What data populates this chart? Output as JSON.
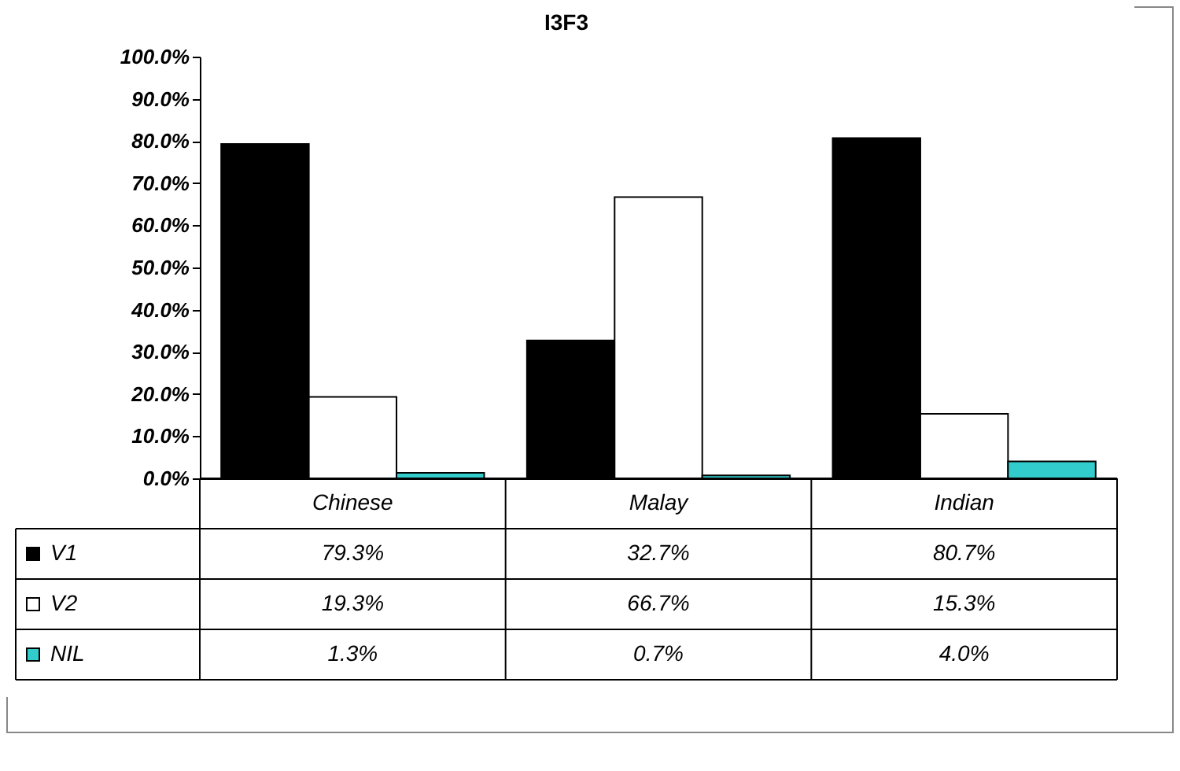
{
  "chart_data": {
    "type": "bar",
    "title": "I3F3",
    "categories": [
      "Chinese",
      "Malay",
      "Indian"
    ],
    "series": [
      {
        "name": "V1",
        "color": "#000000",
        "values": [
          79.3,
          32.7,
          80.7
        ],
        "value_labels": [
          "79.3%",
          "32.7%",
          "80.7%"
        ]
      },
      {
        "name": "V2",
        "color": "#ffffff",
        "values": [
          19.3,
          66.7,
          15.3
        ],
        "value_labels": [
          "19.3%",
          "66.7%",
          "15.3%"
        ]
      },
      {
        "name": "NIL",
        "color": "#33cccc",
        "values": [
          1.3,
          0.7,
          4.0
        ],
        "value_labels": [
          "1.3%",
          "0.7%",
          "4.0%"
        ]
      }
    ],
    "ylim": [
      0,
      100
    ],
    "yticks": [
      {
        "value": 0,
        "label": "0.0%"
      },
      {
        "value": 10,
        "label": "10.0%"
      },
      {
        "value": 20,
        "label": "20.0%"
      },
      {
        "value": 30,
        "label": "30.0%"
      },
      {
        "value": 40,
        "label": "40.0%"
      },
      {
        "value": 50,
        "label": "50.0%"
      },
      {
        "value": 60,
        "label": "60.0%"
      },
      {
        "value": 70,
        "label": "70.0%"
      },
      {
        "value": 80,
        "label": "80.0%"
      },
      {
        "value": 90,
        "label": "90.0%"
      },
      {
        "value": 100,
        "label": "100.0%"
      }
    ],
    "grid": false,
    "legend": "bottom left"
  }
}
